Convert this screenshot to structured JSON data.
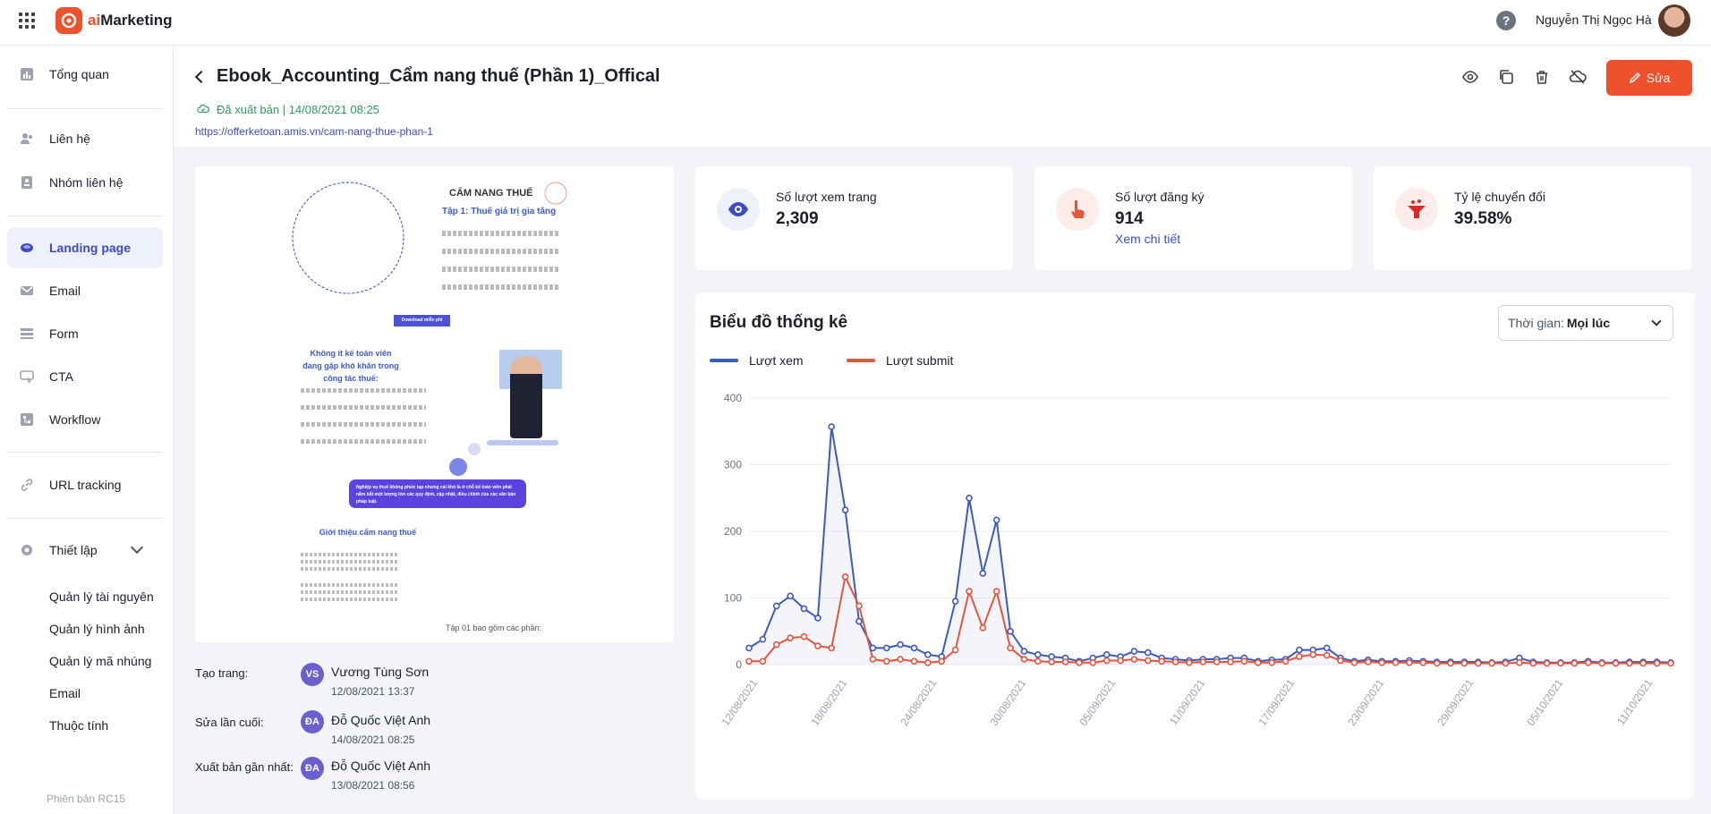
{
  "app": {
    "name_prefix": "ai",
    "name_suffix": "Marketing",
    "user_name": "Nguyễn Thị Ngọc Hà",
    "help_label": "?"
  },
  "sidebar": {
    "items": [
      {
        "label": "Tổng quan",
        "icon": "chart-icon"
      },
      {
        "label": "Liên hệ",
        "icon": "contact-icon"
      },
      {
        "label": "Nhóm liên hệ",
        "icon": "group-icon"
      },
      {
        "label": "Landing page",
        "icon": "landing-icon",
        "active": true
      },
      {
        "label": "Email",
        "icon": "mail-icon"
      },
      {
        "label": "Form",
        "icon": "form-icon"
      },
      {
        "label": "CTA",
        "icon": "cta-icon"
      },
      {
        "label": "Workflow",
        "icon": "workflow-icon"
      },
      {
        "label": "URL tracking",
        "icon": "link-icon"
      },
      {
        "label": "Thiết lập",
        "icon": "gear-icon"
      }
    ],
    "sub_items": [
      "Quản lý tài nguyên",
      "Quản lý hình ảnh",
      "Quản lý mã nhúng",
      "Email",
      "Thuộc tính"
    ],
    "version": "Phiên bản RC15"
  },
  "page": {
    "title": "Ebook_Accounting_Cẩm nang thuế (Phần 1)_Offical",
    "status": "Đã xuất bản | 14/08/2021 08:25",
    "url": "https://offerketoan.amis.vn/cam-nang-thue-phan-1",
    "edit_label": "Sửa"
  },
  "preview": {
    "heading": "CẨM NANG THUẾ",
    "subheading": "Tập 1: Thuế giá trị gia tăng",
    "download": "Download miễn phí",
    "section1": "Không ít kế toán viên đang gặp khó khăn trong công tác thuế:",
    "highlight": "Nghiệp vụ thuế không phức tạp nhưng cái khó là ở chỗ kế toán viên phải nắm bắt một lượng lớn các quy định, cập nhật, điều chỉnh của các văn bản pháp luật.",
    "section2": "Giới thiệu cẩm nang thuế",
    "footer": "Tập 01 bao gồm các phần:"
  },
  "meta": [
    {
      "label": "Tạo trang:",
      "initials": "VS",
      "name": "Vương Tùng Sơn",
      "time": "12/08/2021 13:37"
    },
    {
      "label": "Sửa lần cuối:",
      "initials": "ĐA",
      "name": "Đỗ Quốc Việt Anh",
      "time": "14/08/2021 08:25"
    },
    {
      "label": "Xuất bản gần nhất:",
      "initials": "ĐA",
      "name": "Đỗ Quốc Việt Anh",
      "time": "13/08/2021 08:56"
    }
  ],
  "stats": [
    {
      "label": "Số lượt xem trang",
      "value": "2,309"
    },
    {
      "label": "Số lượt đăng ký",
      "value": "914",
      "link": "Xem chi tiết"
    },
    {
      "label": "Tỷ lệ chuyển đổi",
      "value": "39.58%"
    }
  ],
  "chart_card": {
    "title": "Biểu đồ thống kê",
    "time_label": "Thời gian:",
    "time_value": "Mọi lúc"
  },
  "chart_data": {
    "type": "line",
    "title": "",
    "xlabel": "",
    "ylabel": "",
    "ylim": [
      0,
      400
    ],
    "yticks": [
      0,
      100,
      200,
      300,
      400
    ],
    "x_tick_labels": [
      "12/08/2021",
      "18/08/2021",
      "24/08/2021",
      "30/08/2021",
      "05/09/2021",
      "11/09/2021",
      "17/09/2021",
      "23/09/2021",
      "29/09/2021",
      "05/10/2021",
      "11/10/2021"
    ],
    "legend_position": "top-left",
    "grid": true,
    "colors": {
      "views": "#3a5bbf",
      "submits": "#e8533a"
    },
    "series": [
      {
        "name": "Lượt xem",
        "values": [
          25,
          38,
          88,
          103,
          84,
          70,
          357,
          232,
          65,
          25,
          25,
          30,
          25,
          15,
          12,
          95,
          250,
          137,
          217,
          50,
          20,
          15,
          12,
          10,
          5,
          10,
          15,
          12,
          20,
          18,
          10,
          8,
          6,
          8,
          8,
          10,
          10,
          5,
          7,
          8,
          22,
          22,
          25,
          10,
          5,
          7,
          5,
          5,
          6,
          5,
          4,
          4,
          4,
          4,
          3,
          4,
          10,
          4,
          3,
          3,
          3,
          5,
          3,
          3,
          4,
          4,
          4,
          3
        ]
      },
      {
        "name": "Lượt submit",
        "values": [
          5,
          5,
          30,
          40,
          42,
          28,
          25,
          132,
          88,
          8,
          5,
          8,
          5,
          3,
          5,
          22,
          110,
          55,
          110,
          25,
          8,
          5,
          4,
          4,
          3,
          3,
          6,
          6,
          8,
          6,
          5,
          4,
          3,
          4,
          4,
          4,
          5,
          3,
          3,
          5,
          12,
          15,
          14,
          6,
          3,
          4,
          3,
          3,
          3,
          3,
          2,
          2,
          2,
          2,
          2,
          2,
          3,
          2,
          2,
          2,
          2,
          3,
          2,
          2,
          2,
          2,
          2,
          2
        ]
      }
    ]
  }
}
